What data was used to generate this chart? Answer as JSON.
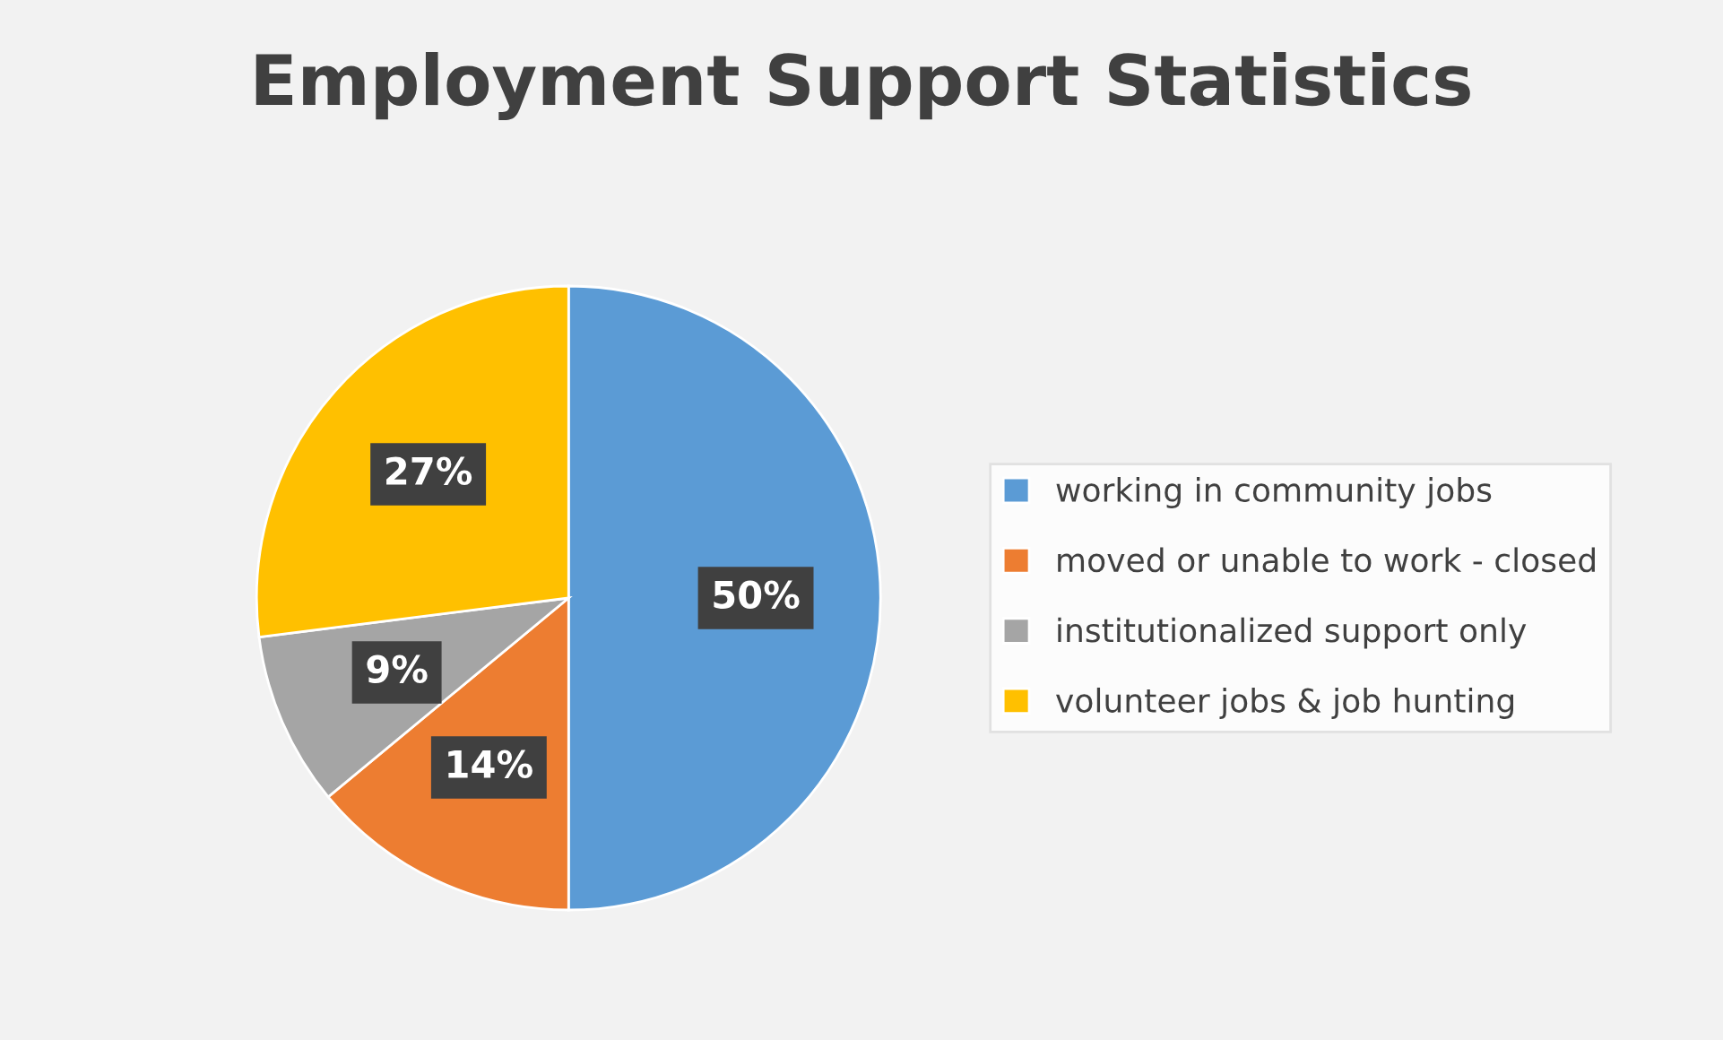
{
  "chart_data": {
    "type": "pie",
    "title": "Employment Support Statistics",
    "categories": [
      "working in community jobs",
      "moved or unable to work - closed",
      "institutionalized support only",
      "volunteer jobs & job hunting"
    ],
    "values": [
      50,
      14,
      9,
      27
    ],
    "colors": [
      "#5b9bd5",
      "#ed7d31",
      "#a5a5a5",
      "#ffc000"
    ],
    "value_labels": [
      "50%",
      "14%",
      "9%",
      "27%"
    ],
    "legend": "right"
  }
}
